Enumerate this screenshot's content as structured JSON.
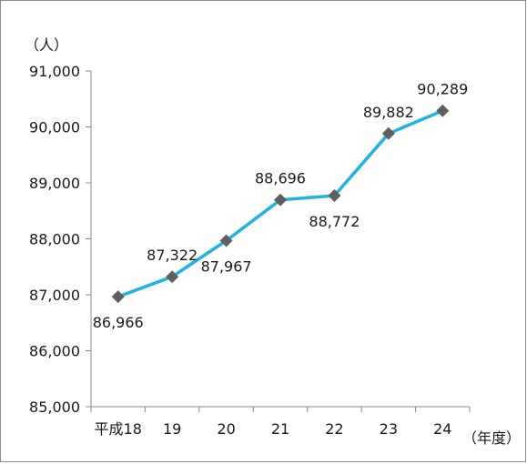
{
  "chart_data": {
    "type": "line",
    "categories": [
      "平成18",
      "19",
      "20",
      "21",
      "22",
      "23",
      "24"
    ],
    "series": [
      {
        "values": [
          86966,
          87322,
          87967,
          88696,
          88772,
          89882,
          90289
        ]
      }
    ],
    "data_labels": [
      "86,966",
      "87,322",
      "87,967",
      "88,696",
      "88,772",
      "89,882",
      "90,289"
    ],
    "y_ticks": [
      "85,000",
      "86,000",
      "87,000",
      "88,000",
      "89,000",
      "90,000",
      "91,000"
    ],
    "y_tick_values": [
      85000,
      86000,
      87000,
      88000,
      89000,
      90000,
      91000
    ],
    "ylim": [
      85000,
      91000
    ],
    "y_unit": "（人）",
    "x_unit": "（年度）",
    "line_color": "#1fb3e3",
    "marker_color": "#5f5f5f",
    "marker_shape": "diamond",
    "grid": false
  }
}
